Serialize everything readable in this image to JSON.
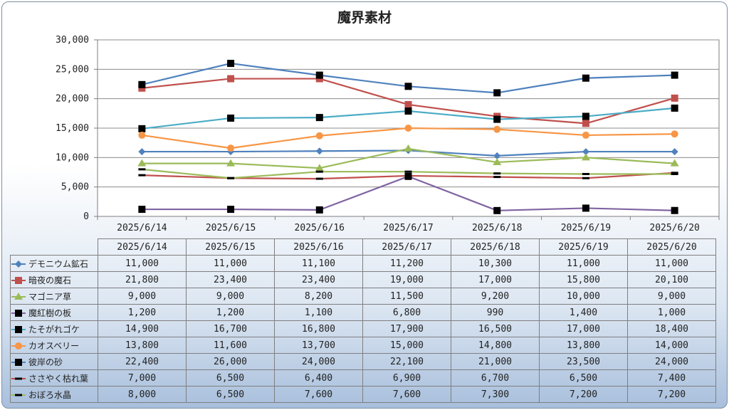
{
  "chart_data": {
    "type": "line",
    "title": "魔界素材",
    "categories": [
      "2025/6/14",
      "2025/6/15",
      "2025/6/16",
      "2025/6/17",
      "2025/6/18",
      "2025/6/19",
      "2025/6/20"
    ],
    "ylim": [
      0,
      30000
    ],
    "yticks": [
      "0",
      "5,000",
      "10,000",
      "15,000",
      "20,000",
      "25,000",
      "30,000"
    ],
    "ytick_values": [
      0,
      5000,
      10000,
      15000,
      20000,
      25000,
      30000
    ],
    "grid": true,
    "legend_placement": "data-table",
    "series": [
      {
        "name": "デモニウム鉱石",
        "color": "#4f81bd",
        "marker": "diamond",
        "values": [
          11000,
          11000,
          11100,
          11200,
          10300,
          11000,
          11000
        ],
        "labels": [
          "11,000",
          "11,000",
          "11,100",
          "11,200",
          "10,300",
          "11,000",
          "11,000"
        ]
      },
      {
        "name": "暗夜の魔石",
        "color": "#c0504d",
        "marker": "square",
        "values": [
          21800,
          23400,
          23400,
          19000,
          17000,
          15800,
          20100
        ],
        "labels": [
          "21,800",
          "23,400",
          "23,400",
          "19,000",
          "17,000",
          "15,800",
          "20,100"
        ]
      },
      {
        "name": "マゴニア草",
        "color": "#9bbb59",
        "marker": "triangle",
        "values": [
          9000,
          9000,
          8200,
          11500,
          9200,
          10000,
          9000
        ],
        "labels": [
          "9,000",
          "9,000",
          "8,200",
          "11,500",
          "9,200",
          "10,000",
          "9,000"
        ]
      },
      {
        "name": "魔紅樹の板",
        "color": "#8064a2",
        "marker": "black-square",
        "values": [
          1200,
          1200,
          1100,
          6800,
          990,
          1400,
          1000
        ],
        "labels": [
          "1,200",
          "1,200",
          "1,100",
          "6,800",
          "990",
          "1,400",
          "1,000"
        ]
      },
      {
        "name": "たそがれゴケ",
        "color": "#4bacc6",
        "marker": "black-square",
        "values": [
          14900,
          16700,
          16800,
          17900,
          16500,
          17000,
          18400
        ],
        "labels": [
          "14,900",
          "16,700",
          "16,800",
          "17,900",
          "16,500",
          "17,000",
          "18,400"
        ]
      },
      {
        "name": "カオスベリー",
        "color": "#f79646",
        "marker": "circle",
        "values": [
          13800,
          11600,
          13700,
          15000,
          14800,
          13800,
          14000
        ],
        "labels": [
          "13,800",
          "11,600",
          "13,700",
          "15,000",
          "14,800",
          "13,800",
          "14,000"
        ]
      },
      {
        "name": "彼岸の砂",
        "color": "#4f81bd",
        "marker": "black-square",
        "values": [
          22400,
          26000,
          24000,
          22100,
          21000,
          23500,
          24000
        ],
        "labels": [
          "22,400",
          "26,000",
          "24,000",
          "22,100",
          "21,000",
          "23,500",
          "24,000"
        ]
      },
      {
        "name": "ささやく枯れ葉",
        "color": "#c0504d",
        "marker": "dash",
        "values": [
          7000,
          6500,
          6400,
          6900,
          6700,
          6500,
          7400
        ],
        "labels": [
          "7,000",
          "6,500",
          "6,400",
          "6,900",
          "6,700",
          "6,500",
          "7,400"
        ]
      },
      {
        "name": "おぼろ水晶",
        "color": "#9bbb59",
        "marker": "dash",
        "values": [
          8000,
          6500,
          7600,
          7600,
          7300,
          7200,
          7200
        ],
        "labels": [
          "8,000",
          "6,500",
          "7,600",
          "7,600",
          "7,300",
          "7,200",
          "7,200"
        ]
      }
    ]
  }
}
